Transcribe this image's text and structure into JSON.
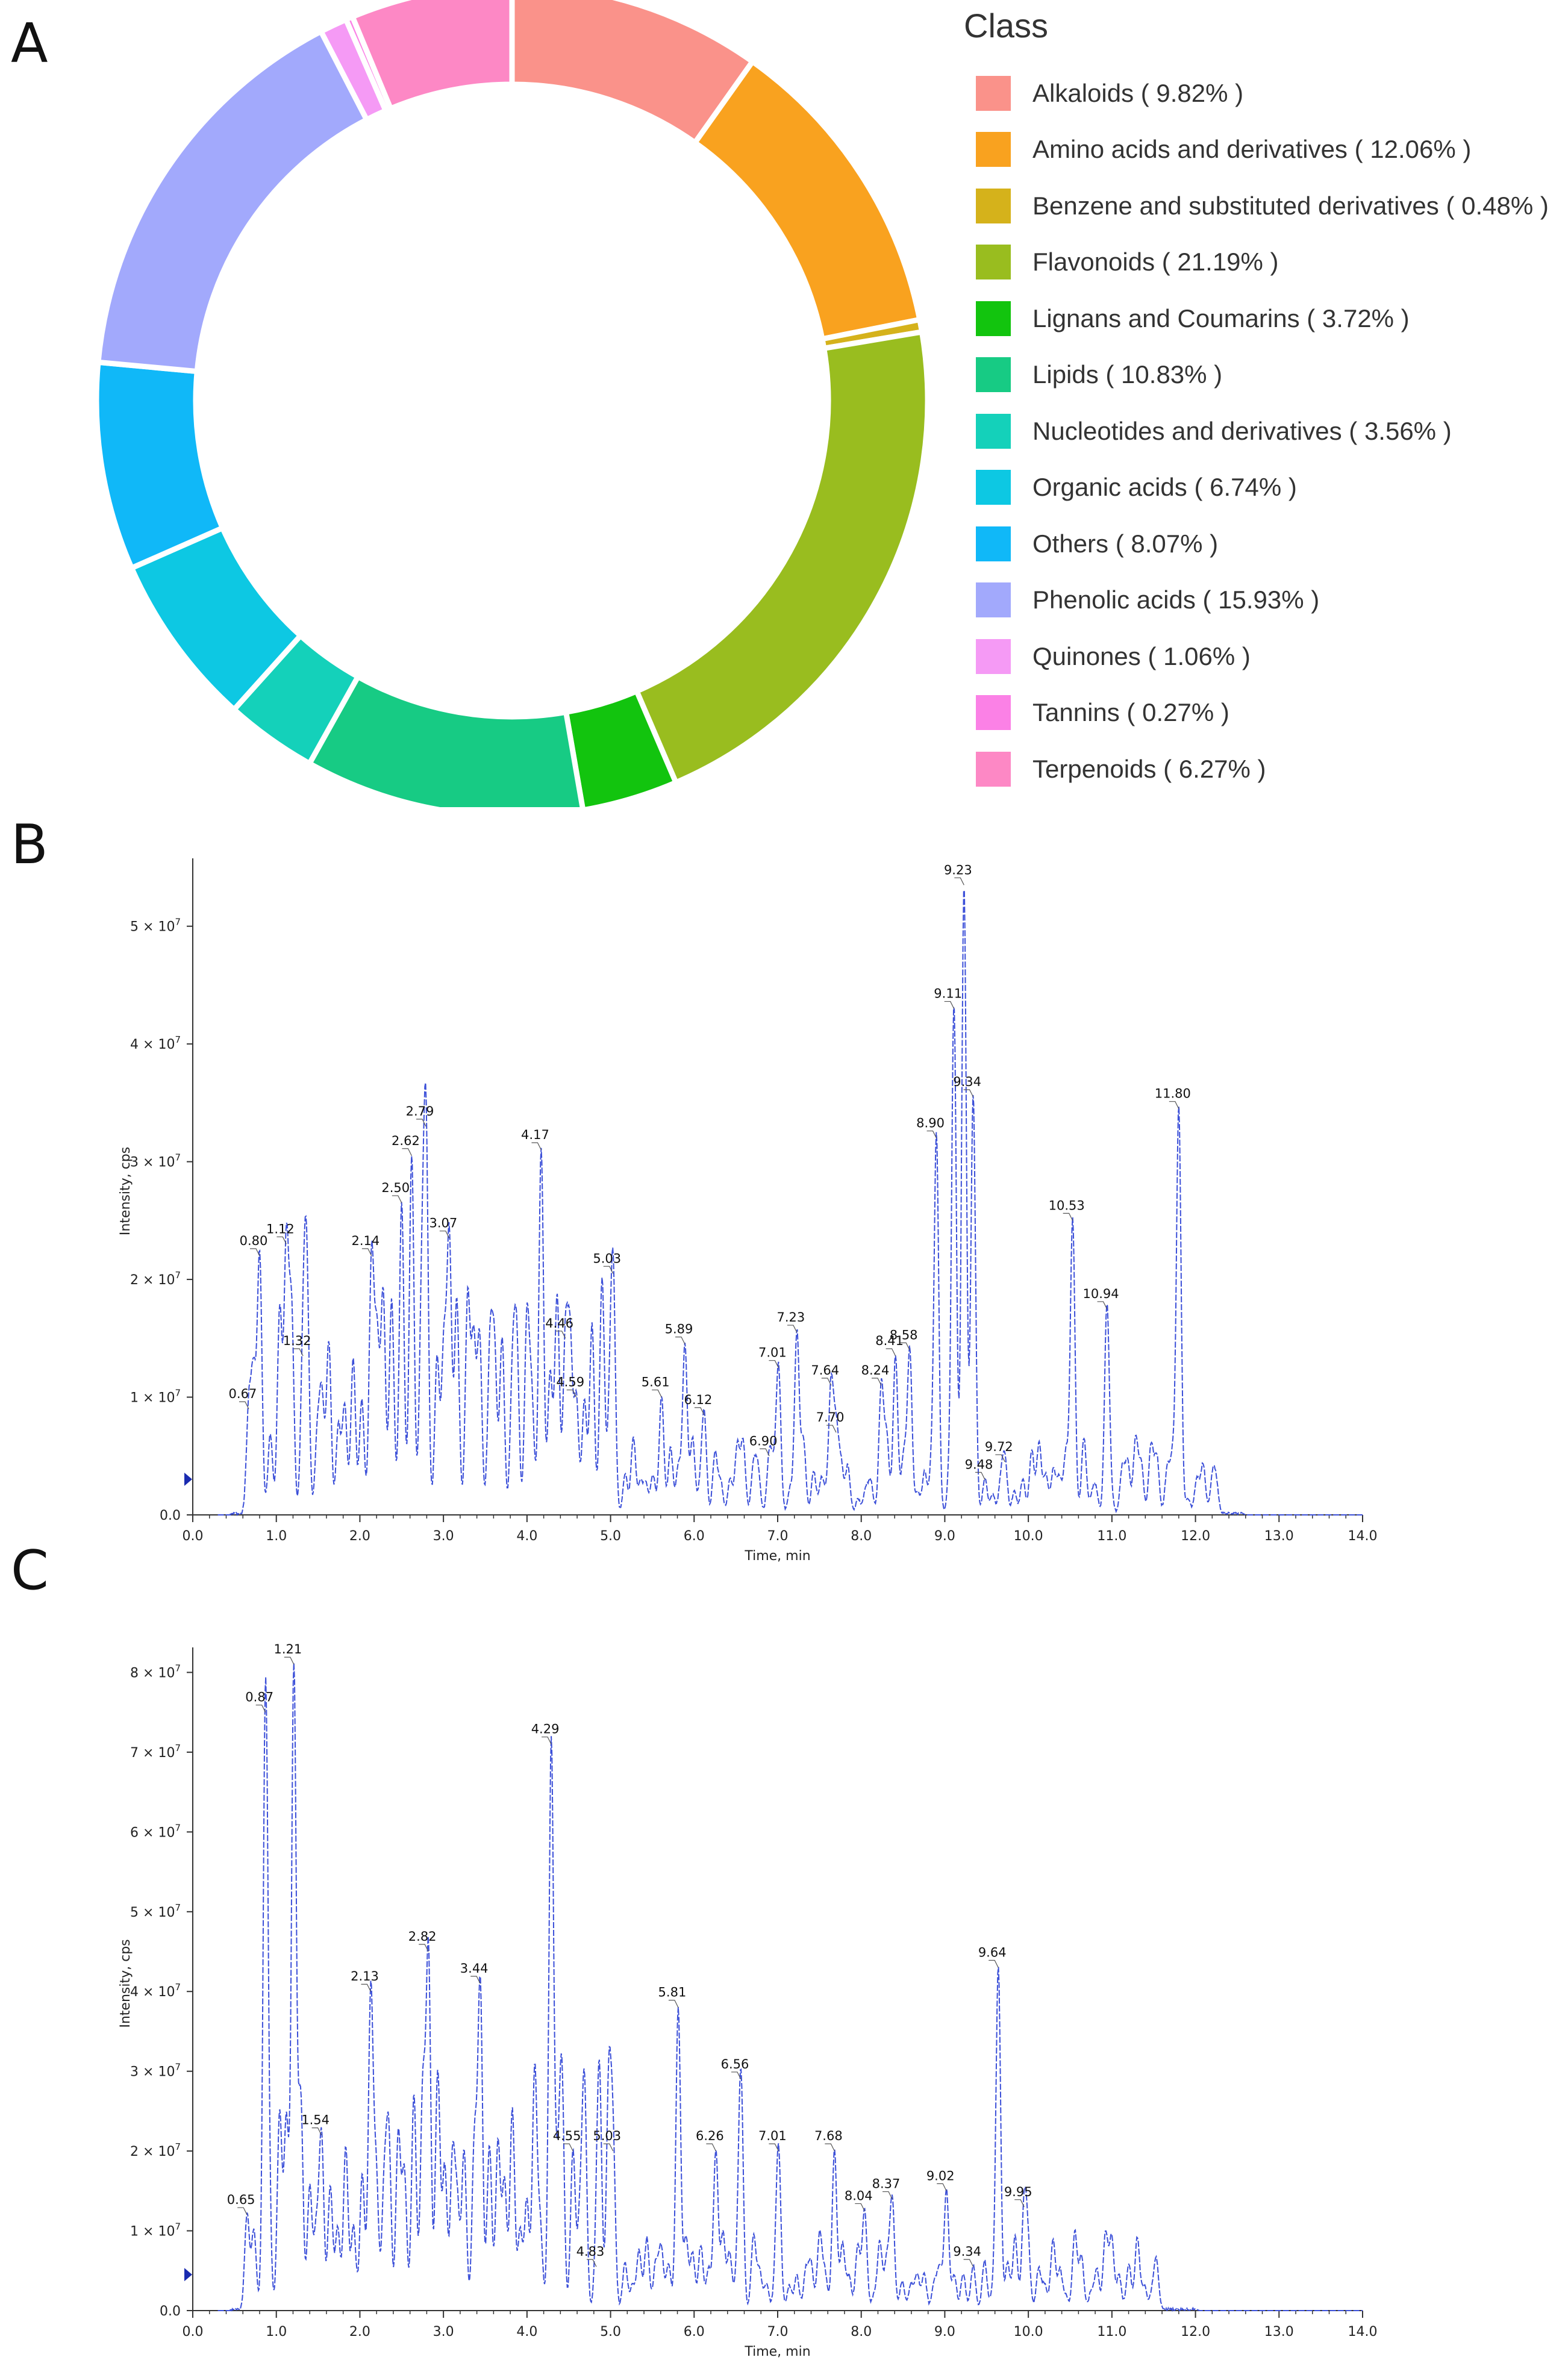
{
  "panels": {
    "a": "A",
    "b": "B",
    "c": "C"
  },
  "chart_data": [
    {
      "type": "pie",
      "variant": "donut",
      "legend_title": "Class",
      "legend_position": "right",
      "slices": [
        {
          "label": "Alkaloids ( 9.82% )",
          "value": 9.82,
          "color": "#FA928A"
        },
        {
          "label": "Amino acids and derivatives ( 12.06% )",
          "value": 12.06,
          "color": "#F9A21F"
        },
        {
          "label": "Benzene and substituted derivatives ( 0.48% )",
          "value": 0.48,
          "color": "#D5B21B"
        },
        {
          "label": "Flavonoids ( 21.19% )",
          "value": 21.19,
          "color": "#99BD1F"
        },
        {
          "label": "Lignans and Coumarins ( 3.72% )",
          "value": 3.72,
          "color": "#12C40E"
        },
        {
          "label": "Lipids ( 10.83% )",
          "value": 10.83,
          "color": "#17CB84"
        },
        {
          "label": "Nucleotides and derivatives ( 3.56% )",
          "value": 3.56,
          "color": "#14D1BA"
        },
        {
          "label": "Organic acids ( 6.74% )",
          "value": 6.74,
          "color": "#0DC8E3"
        },
        {
          "label": "Others ( 8.07% )",
          "value": 8.07,
          "color": "#10B8F8"
        },
        {
          "label": "Phenolic acids ( 15.93% )",
          "value": 15.93,
          "color": "#A2A9FC"
        },
        {
          "label": "Quinones ( 1.06% )",
          "value": 1.06,
          "color": "#F59AF5"
        },
        {
          "label": "Tannins ( 0.27% )",
          "value": 0.27,
          "color": "#FB81E6"
        },
        {
          "label": "Terpenoids ( 6.27% )",
          "value": 6.27,
          "color": "#FD88C5"
        }
      ]
    },
    {
      "type": "line",
      "xlabel": "Time, min",
      "ylabel": "Intensity, cps",
      "xlim": [
        0,
        14
      ],
      "ylim": [
        0,
        55000000
      ],
      "xticks": [
        "0.0",
        "1.0",
        "2.0",
        "3.0",
        "4.0",
        "5.0",
        "6.0",
        "7.0",
        "8.0",
        "9.0",
        "10.0",
        "11.0",
        "12.0",
        "13.0",
        "14.0"
      ],
      "yticks": [
        {
          "value": 0,
          "label": "0.0"
        },
        {
          "value": 10000000,
          "label": "1 × 10"
        },
        {
          "value": 20000000,
          "label": "2 × 10"
        },
        {
          "value": 30000000,
          "label": "3 × 10"
        },
        {
          "value": 40000000,
          "label": "4 × 10"
        },
        {
          "value": 50000000,
          "label": "5 × 10"
        }
      ],
      "ytick_exponent": "7",
      "line_color": "#3b4fd8",
      "peaks": [
        {
          "x": 0.67,
          "y": 9000000,
          "label": "0.67"
        },
        {
          "x": 0.8,
          "y": 22000000,
          "label": "0.80"
        },
        {
          "x": 1.12,
          "y": 23000000,
          "label": "1.12"
        },
        {
          "x": 1.32,
          "y": 13500000,
          "label": "1.32"
        },
        {
          "x": 2.14,
          "y": 22000000,
          "label": "2.14"
        },
        {
          "x": 2.5,
          "y": 26500000,
          "label": "2.50"
        },
        {
          "x": 2.62,
          "y": 30500000,
          "label": "2.62"
        },
        {
          "x": 2.79,
          "y": 33000000,
          "label": "2.79"
        },
        {
          "x": 3.07,
          "y": 23500000,
          "label": "3.07"
        },
        {
          "x": 4.17,
          "y": 31000000,
          "label": "4.17"
        },
        {
          "x": 4.46,
          "y": 15000000,
          "label": "4.46"
        },
        {
          "x": 4.59,
          "y": 10000000,
          "label": "4.59"
        },
        {
          "x": 5.03,
          "y": 20500000,
          "label": "5.03"
        },
        {
          "x": 5.61,
          "y": 10000000,
          "label": "5.61"
        },
        {
          "x": 5.89,
          "y": 14500000,
          "label": "5.89"
        },
        {
          "x": 6.12,
          "y": 8500000,
          "label": "6.12"
        },
        {
          "x": 6.9,
          "y": 5000000,
          "label": "6.90"
        },
        {
          "x": 7.01,
          "y": 12500000,
          "label": "7.01"
        },
        {
          "x": 7.23,
          "y": 15500000,
          "label": "7.23"
        },
        {
          "x": 7.64,
          "y": 11000000,
          "label": "7.64"
        },
        {
          "x": 7.7,
          "y": 7000000,
          "label": "7.70"
        },
        {
          "x": 8.24,
          "y": 11000000,
          "label": "8.24"
        },
        {
          "x": 8.41,
          "y": 13500000,
          "label": "8.41"
        },
        {
          "x": 8.58,
          "y": 14000000,
          "label": "8.58"
        },
        {
          "x": 8.9,
          "y": 32000000,
          "label": "8.90"
        },
        {
          "x": 9.11,
          "y": 43000000,
          "label": "9.11"
        },
        {
          "x": 9.23,
          "y": 53500000,
          "label": "9.23"
        },
        {
          "x": 9.34,
          "y": 35500000,
          "label": "9.34"
        },
        {
          "x": 9.48,
          "y": 3000000,
          "label": "9.48"
        },
        {
          "x": 9.72,
          "y": 4500000,
          "label": "9.72"
        },
        {
          "x": 10.53,
          "y": 25000000,
          "label": "10.53"
        },
        {
          "x": 10.94,
          "y": 17500000,
          "label": "10.94"
        },
        {
          "x": 11.8,
          "y": 34500000,
          "label": "11.80"
        }
      ]
    },
    {
      "type": "line",
      "xlabel": "Time, min",
      "ylabel": "Intensity, cps",
      "xlim": [
        0,
        14
      ],
      "ylim": [
        0,
        82000000
      ],
      "xticks": [
        "0.0",
        "1.0",
        "2.0",
        "3.0",
        "4.0",
        "5.0",
        "6.0",
        "7.0",
        "8.0",
        "9.0",
        "10.0",
        "11.0",
        "12.0",
        "13.0",
        "14.0"
      ],
      "yticks": [
        {
          "value": 0,
          "label": "0.0"
        },
        {
          "value": 10000000,
          "label": "1 × 10"
        },
        {
          "value": 20000000,
          "label": "2 × 10"
        },
        {
          "value": 30000000,
          "label": "3 × 10"
        },
        {
          "value": 40000000,
          "label": "4 × 10"
        },
        {
          "value": 50000000,
          "label": "5 × 10"
        },
        {
          "value": 60000000,
          "label": "6 × 10"
        },
        {
          "value": 70000000,
          "label": "7 × 10"
        },
        {
          "value": 80000000,
          "label": "8 × 10"
        }
      ],
      "ytick_exponent": "7",
      "line_color": "#3b4fd8",
      "peaks": [
        {
          "x": 0.65,
          "y": 12000000,
          "label": "0.65"
        },
        {
          "x": 0.87,
          "y": 75000000,
          "label": "0.87"
        },
        {
          "x": 1.21,
          "y": 81000000,
          "label": "1.21"
        },
        {
          "x": 1.54,
          "y": 22000000,
          "label": "1.54"
        },
        {
          "x": 2.13,
          "y": 40000000,
          "label": "2.13"
        },
        {
          "x": 2.82,
          "y": 45000000,
          "label": "2.82"
        },
        {
          "x": 3.44,
          "y": 41000000,
          "label": "3.44"
        },
        {
          "x": 4.29,
          "y": 71000000,
          "label": "4.29"
        },
        {
          "x": 4.55,
          "y": 20000000,
          "label": "4.55"
        },
        {
          "x": 4.83,
          "y": 5500000,
          "label": "4.83"
        },
        {
          "x": 5.03,
          "y": 20000000,
          "label": "5.03"
        },
        {
          "x": 5.81,
          "y": 38000000,
          "label": "5.81"
        },
        {
          "x": 6.26,
          "y": 20000000,
          "label": "6.26"
        },
        {
          "x": 6.56,
          "y": 29000000,
          "label": "6.56"
        },
        {
          "x": 7.01,
          "y": 20000000,
          "label": "7.01"
        },
        {
          "x": 7.68,
          "y": 20000000,
          "label": "7.68"
        },
        {
          "x": 8.04,
          "y": 12500000,
          "label": "8.04"
        },
        {
          "x": 8.37,
          "y": 14000000,
          "label": "8.37"
        },
        {
          "x": 9.02,
          "y": 15000000,
          "label": "9.02"
        },
        {
          "x": 9.34,
          "y": 5500000,
          "label": "9.34"
        },
        {
          "x": 9.64,
          "y": 43000000,
          "label": "9.64"
        },
        {
          "x": 9.95,
          "y": 13000000,
          "label": "9.95"
        }
      ]
    }
  ]
}
